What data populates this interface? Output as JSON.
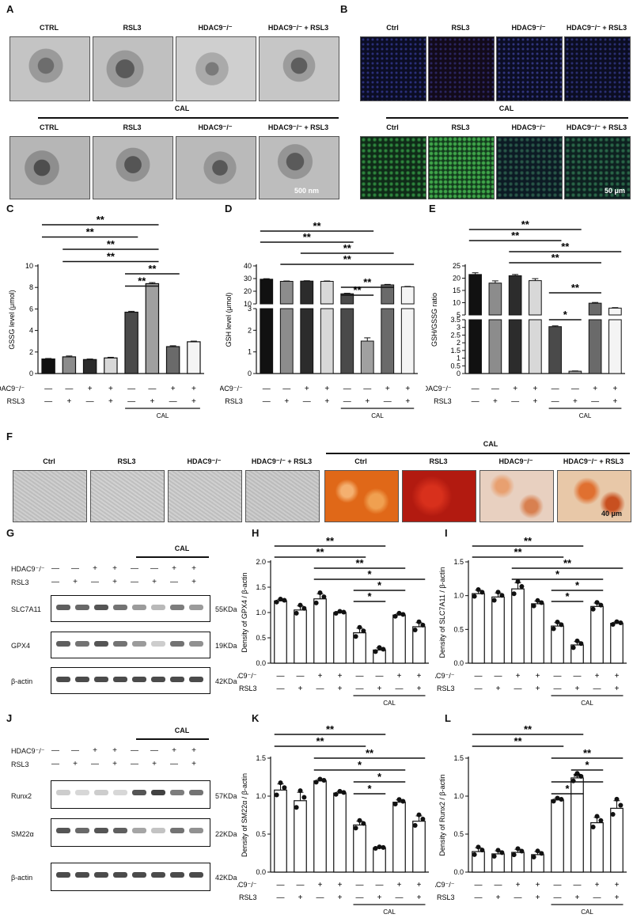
{
  "panel_letters": [
    "A",
    "B",
    "C",
    "D",
    "E",
    "F",
    "G",
    "H",
    "I",
    "J",
    "K",
    "L"
  ],
  "colors": {
    "em_bg": "#b8b8b8",
    "if_dark": "#0b0d24",
    "if_green": "#1a5a2a",
    "ars_ctrl": "#e87d2a",
    "ars_rsl3": "#c41e12",
    "ars_hdac": "#e8c8a8",
    "bright_gray": "#c9c9c9",
    "bar_dark": "#1a1a1a"
  },
  "panelA": {
    "row1_labels": [
      "CTRL",
      "RSL3",
      "HDAC9⁻/⁻",
      "HDAC9⁻/⁻ + RSL3"
    ],
    "cal_label": "CAL",
    "row2_labels": [
      "CTRL",
      "RSL3",
      "HDAC9⁻/⁻",
      "HDAC9⁻/⁻ + RSL3"
    ],
    "scale": "500 nm"
  },
  "panelB": {
    "row1_labels": [
      "Ctrl",
      "RSL3",
      "HDAC9⁻/⁻",
      "HDAC9⁻/⁻ + RSL3"
    ],
    "cal_label": "CAL",
    "row2_labels": [
      "Ctrl",
      "RSL3",
      "HDAC9⁻/⁻",
      "HDAC9⁻/⁻ + RSL3"
    ],
    "scale": "50 μm"
  },
  "panelF": {
    "labels": [
      "Ctrl",
      "RSL3",
      "HDAC9⁻/⁻",
      "HDAC9⁻/⁻ + RSL3",
      "Ctrl",
      "RSL3",
      "HDAC9⁻/⁻",
      "HDAC9⁻/⁻ + RSL3"
    ],
    "cal_label": "CAL",
    "scale": "40 μm"
  },
  "row_labels": {
    "hdac": "HDAC9⁻/⁻",
    "rsl3": "RSL3",
    "cal": "CAL"
  },
  "design": {
    "hdac": [
      "—",
      "—",
      "+",
      "+",
      "—",
      "—",
      "+",
      "+"
    ],
    "rsl3": [
      "—",
      "+",
      "—",
      "+",
      "—",
      "+",
      "—",
      "+"
    ]
  },
  "westernG": {
    "bands": [
      "SLC7A11",
      "GPX4",
      "β-actin"
    ],
    "kda": [
      "55KDa",
      "19KDa",
      "42KDa"
    ]
  },
  "westernJ": {
    "bands": [
      "Runx2",
      "SM22α",
      "β-actin"
    ],
    "kda": [
      "57KDa",
      "22KDa",
      "42KDa"
    ]
  },
  "chart_data": [
    {
      "id": "C",
      "type": "bar",
      "ylabel": "GSSG level (μmol)",
      "ylim": [
        0,
        10
      ],
      "yticks": [
        0,
        2,
        4,
        6,
        8,
        10
      ],
      "values": [
        1.35,
        1.55,
        1.3,
        1.45,
        5.7,
        8.35,
        2.5,
        2.95
      ],
      "errors": [
        0.05,
        0.08,
        0.05,
        0.06,
        0.08,
        0.1,
        0.08,
        0.06
      ],
      "significance": [
        "**",
        "**",
        "**",
        "**",
        "**",
        "**"
      ]
    },
    {
      "id": "D",
      "type": "bar",
      "broken_axis": true,
      "ylabel": "GSH level (μmol)",
      "upper_ticks": [
        10,
        20,
        30,
        40
      ],
      "lower_ticks": [
        0,
        1,
        2,
        3
      ],
      "values": [
        29.5,
        27.8,
        28.0,
        27.8,
        18.0,
        1.5,
        25.0,
        23.5
      ],
      "errors": [
        0.4,
        0.3,
        0.3,
        0.3,
        0.4,
        0.15,
        0.4,
        0.3
      ],
      "significance": [
        "**",
        "**",
        "**",
        "**",
        "**",
        "**"
      ]
    },
    {
      "id": "E",
      "type": "bar",
      "broken_axis": true,
      "ylabel": "GSH/GSSG ratio",
      "upper_ticks": [
        5,
        10,
        15,
        20,
        25
      ],
      "lower_ticks": [
        0,
        0.5,
        1,
        1.5,
        2,
        2.5,
        3,
        3.5
      ],
      "values": [
        21.5,
        18.0,
        21.0,
        19.0,
        3.05,
        0.15,
        9.8,
        7.8
      ],
      "errors": [
        0.7,
        0.9,
        0.5,
        0.8,
        0.05,
        0.02,
        0.3,
        0.2
      ],
      "significance": [
        "**",
        "**",
        "**",
        "**",
        "**",
        "*"
      ]
    },
    {
      "id": "H",
      "type": "bar",
      "ylabel": "Density of GPX4 / β-actin",
      "ylim": [
        0,
        2.0
      ],
      "yticks": [
        0.0,
        0.5,
        1.0,
        1.5,
        2.0
      ],
      "values": [
        1.23,
        1.05,
        1.27,
        1.0,
        0.6,
        0.26,
        0.95,
        0.72
      ],
      "errors": [
        0.03,
        0.08,
        0.1,
        0.02,
        0.09,
        0.04,
        0.03,
        0.08
      ],
      "significance": [
        "**",
        "**",
        "**",
        "*",
        "*",
        "*"
      ]
    },
    {
      "id": "I",
      "type": "bar",
      "ylabel": "Density of SLC7A11 / β-actin",
      "ylim": [
        0,
        1.5
      ],
      "yticks": [
        0.0,
        0.5,
        1.0,
        1.5
      ],
      "values": [
        1.03,
        0.98,
        1.1,
        0.88,
        0.55,
        0.27,
        0.84,
        0.59
      ],
      "errors": [
        0.05,
        0.06,
        0.09,
        0.04,
        0.05,
        0.05,
        0.05,
        0.02
      ],
      "significance": [
        "**",
        "**",
        "**",
        "*",
        "*",
        "*"
      ]
    },
    {
      "id": "K",
      "type": "bar",
      "ylabel": "Density of SM22α / β-actin",
      "ylim": [
        0,
        1.5
      ],
      "yticks": [
        0.0,
        0.5,
        1.0,
        1.5
      ],
      "values": [
        1.08,
        0.94,
        1.2,
        1.04,
        0.62,
        0.32,
        0.92,
        0.67
      ],
      "errors": [
        0.08,
        0.11,
        0.02,
        0.02,
        0.05,
        0.01,
        0.03,
        0.07
      ],
      "significance": [
        "**",
        "**",
        "**",
        "*",
        "*",
        "*"
      ]
    },
    {
      "id": "L",
      "type": "bar",
      "ylabel": "Density of Runx2 / β-actin",
      "ylim": [
        0,
        1.5
      ],
      "yticks": [
        0.0,
        0.5,
        1.0,
        1.5
      ],
      "values": [
        0.27,
        0.24,
        0.26,
        0.23,
        0.95,
        1.24,
        0.65,
        0.84
      ],
      "errors": [
        0.05,
        0.04,
        0.04,
        0.04,
        0.02,
        0.05,
        0.07,
        0.1
      ],
      "significance": [
        "**",
        "**",
        "**",
        "*",
        "**",
        "*"
      ]
    }
  ]
}
